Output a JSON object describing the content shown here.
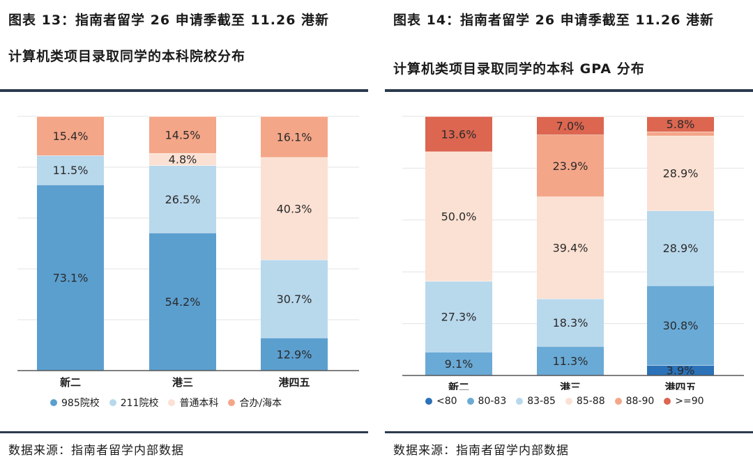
{
  "left": {
    "title_line1": "图表 13：指南者留学 26 申请季截至 11.26 港新",
    "title_line2": "计算机类项目录取同学的本科院校分布",
    "source": "数据来源：指南者留学内部数据",
    "chart_data": {
      "type": "bar",
      "stacked": true,
      "percent_stacked": true,
      "categories": [
        "新二",
        "港三",
        "港四五"
      ],
      "series": [
        {
          "name": "985院校",
          "color": "#5b9fcf",
          "values": [
            73.1,
            54.2,
            12.9
          ],
          "labels": [
            "73.1%",
            "54.2%",
            "12.9%"
          ]
        },
        {
          "name": "211院校",
          "color": "#b8d8ec",
          "values": [
            11.5,
            26.5,
            30.7
          ],
          "labels": [
            "11.5%",
            "26.5%",
            "30.7%"
          ]
        },
        {
          "name": "普通本科",
          "color": "#fbe1d3",
          "values": [
            0,
            4.8,
            40.3
          ],
          "labels": [
            "",
            "4.8%",
            "40.3%"
          ]
        },
        {
          "name": "合办/海本",
          "color": "#f4a688",
          "values": [
            15.4,
            14.5,
            16.1
          ],
          "labels": [
            "15.4%",
            "14.5%",
            "16.1%"
          ]
        }
      ],
      "ylim": [
        0,
        100
      ],
      "grid": true,
      "legend": "bottom"
    }
  },
  "right": {
    "title_line1": "图表 14：指南者留学 26 申请季截至 11.26 港新",
    "title_line2": "计算机类项目录取同学的本科 GPA 分布",
    "source": "数据来源：指南者留学内部数据",
    "chart_data": {
      "type": "bar",
      "stacked": true,
      "percent_stacked": true,
      "categories": [
        "新二",
        "港三",
        "港四五"
      ],
      "series": [
        {
          "name": "<80",
          "color": "#2b72b8",
          "values": [
            0,
            0,
            3.9
          ],
          "labels": [
            "",
            "",
            "3.9%"
          ]
        },
        {
          "name": "80-83",
          "color": "#6aaad6",
          "values": [
            9.1,
            11.3,
            30.8
          ],
          "labels": [
            "9.1%",
            "11.3%",
            "30.8%"
          ]
        },
        {
          "name": "83-85",
          "color": "#b8d8ec",
          "values": [
            27.3,
            18.3,
            28.9
          ],
          "labels": [
            "27.3%",
            "18.3%",
            "28.9%"
          ]
        },
        {
          "name": "85-88",
          "color": "#fbe1d3",
          "values": [
            50.0,
            39.4,
            28.9
          ],
          "labels": [
            "50.0%",
            "39.4%",
            "28.9%"
          ]
        },
        {
          "name": "88-90",
          "color": "#f4a688",
          "values": [
            0,
            23.9,
            1.6
          ],
          "labels": [
            "",
            "23.9%",
            ""
          ]
        },
        {
          "name": ">=90",
          "color": "#dc6650",
          "values": [
            13.6,
            7.0,
            5.8
          ],
          "labels": [
            "13.6%",
            "7.0%",
            "5.8%"
          ]
        }
      ],
      "ylim": [
        0,
        100
      ],
      "grid": true,
      "legend": "bottom"
    }
  }
}
